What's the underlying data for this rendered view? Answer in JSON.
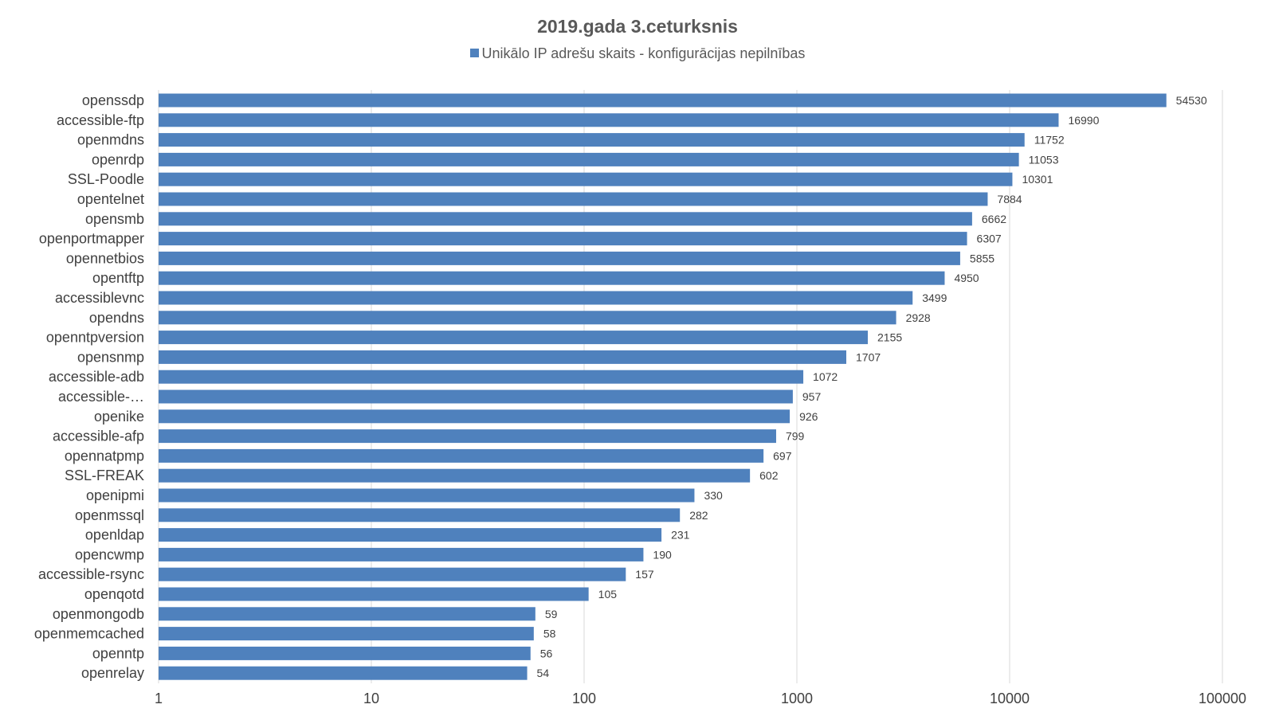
{
  "chart_data": {
    "type": "bar",
    "orientation": "horizontal",
    "title": "2019.gada 3.ceturksnis",
    "legend": {
      "position": "top",
      "label": "Unikālo IP adrešu skaits  -  konfigurācijas nepilnības"
    },
    "series": [
      {
        "name": "Unikālo IP adrešu skaits  -  konfigurācijas nepilnības",
        "color": "#4F81BD"
      }
    ],
    "categories": [
      "openssdp",
      "accessible-ftp",
      "openmdns",
      "openrdp",
      "SSL-Poodle",
      "opentelnet",
      "opensmb",
      "openportmapper",
      "opennetbios",
      "opentftp",
      "accessiblevnc",
      "opendns",
      "openntpversion",
      "opensnmp",
      "accessible-adb",
      "accessible-…",
      "openike",
      "accessible-afp",
      "opennatpmp",
      "SSL-FREAK",
      "openipmi",
      "openmssql",
      "openldap",
      "opencwmp",
      "accessible-rsync",
      "openqotd",
      "openmongodb",
      "openmemcached",
      "openntp",
      "openrelay"
    ],
    "values": [
      54530,
      16990,
      11752,
      11053,
      10301,
      7884,
      6662,
      6307,
      5855,
      4950,
      3499,
      2928,
      2155,
      1707,
      1072,
      957,
      926,
      799,
      697,
      602,
      330,
      282,
      231,
      190,
      157,
      105,
      59,
      58,
      56,
      54
    ],
    "x_scale": "log",
    "x_ticks": [
      "1",
      "10",
      "100",
      "1000",
      "10000",
      "100000"
    ],
    "xlim": [
      1,
      100000
    ],
    "gridlines": true,
    "colors": {
      "bar": "#4F81BD",
      "grid": "#D9D9D9",
      "text": "#404040",
      "title": "#595959"
    }
  }
}
